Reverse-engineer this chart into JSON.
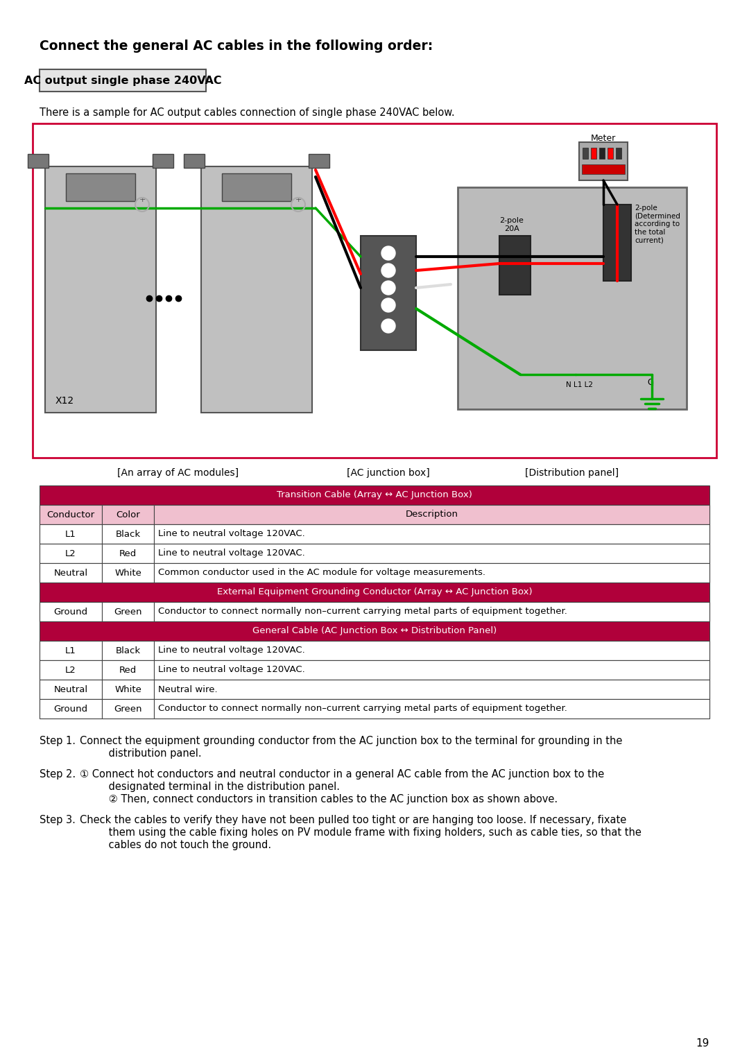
{
  "title": "Connect the general AC cables in the following order:",
  "subtitle_box": "AC output single phase 240VAC",
  "intro_text": "There is a sample for AC output cables connection of single phase 240VAC below.",
  "diagram_labels": [
    "[An array of AC modules]",
    "[AC junction box]",
    "[Distribution panel]"
  ],
  "table_header1": "Transition Cable (Array ↔ AC Junction Box)",
  "table_header2": "External Equipment Grounding Conductor (Array ↔ AC Junction Box)",
  "table_header3": "General Cable (AC Junction Box ↔ Distribution Panel)",
  "col_headers": [
    "Conductor",
    "Color",
    "Description"
  ],
  "table1_rows": [
    [
      "L1",
      "Black",
      "Line to neutral voltage 120VAC."
    ],
    [
      "L2",
      "Red",
      "Line to neutral voltage 120VAC."
    ],
    [
      "Neutral",
      "White",
      "Common conductor used in the AC module for voltage measurements."
    ]
  ],
  "table2_rows": [
    [
      "Ground",
      "Green",
      "Conductor to connect normally non–current carrying metal parts of equipment together."
    ]
  ],
  "table3_rows": [
    [
      "L1",
      "Black",
      "Line to neutral voltage 120VAC."
    ],
    [
      "L2",
      "Red",
      "Line to neutral voltage 120VAC."
    ],
    [
      "Neutral",
      "White",
      "Neutral wire."
    ],
    [
      "Ground",
      "Green",
      "Conductor to connect normally non–current carrying metal parts of equipment together."
    ]
  ],
  "page_number": "19",
  "header_color": "#B0003A",
  "subheader_color": "#D4607A",
  "bg_light_pink": "#F0C0CF",
  "bg_white": "#FFFFFF",
  "diagram_border_color": "#CC0033"
}
